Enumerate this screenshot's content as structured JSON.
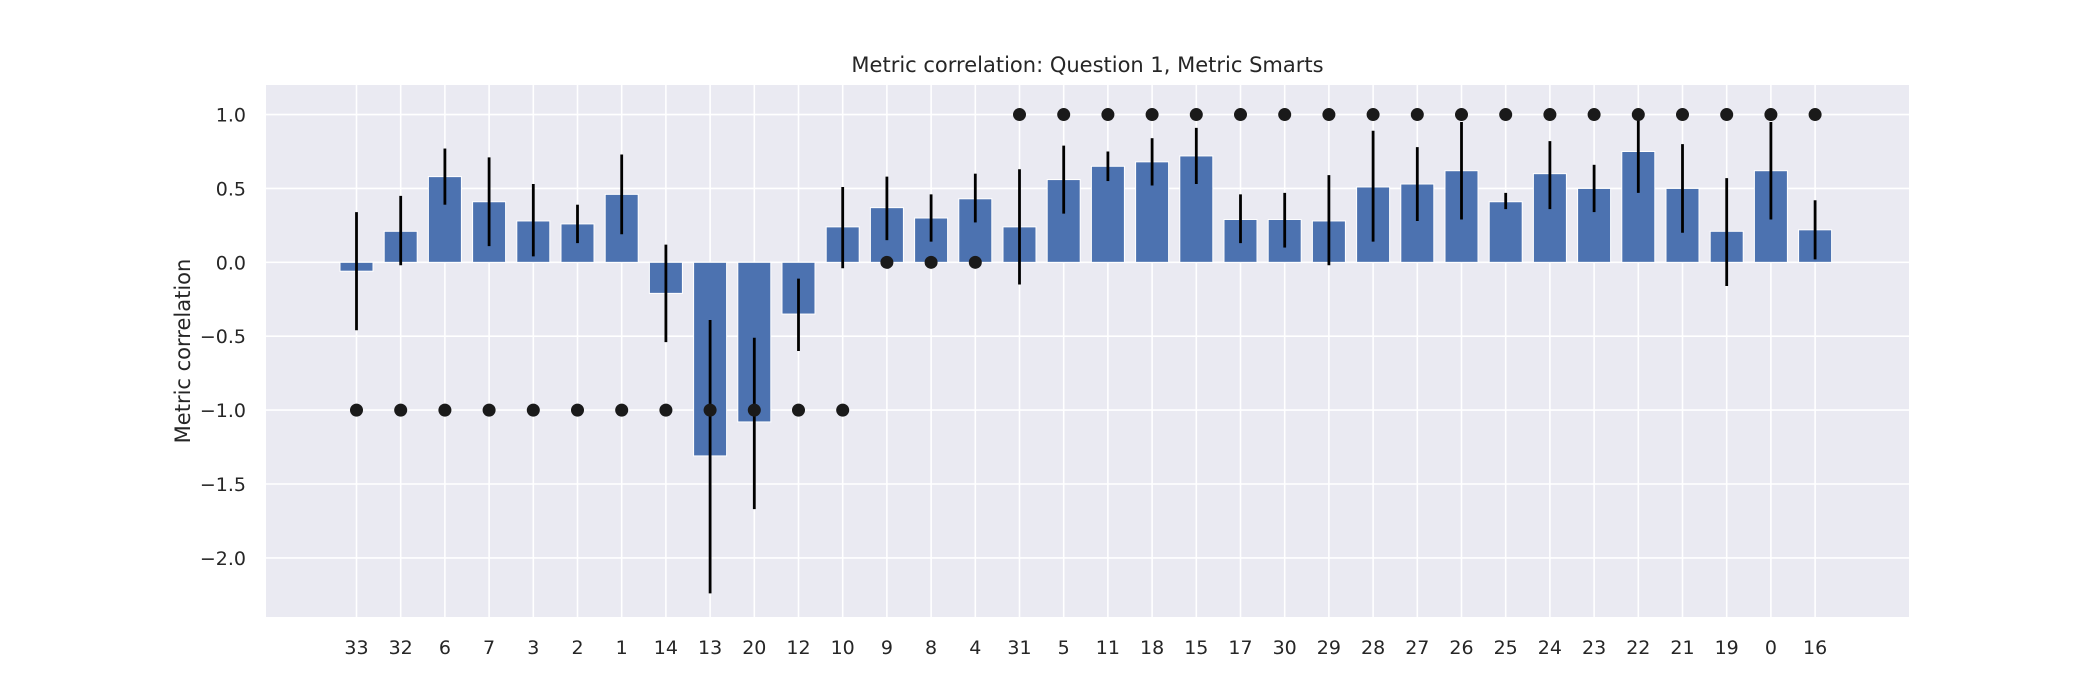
{
  "chart_data": {
    "type": "bar",
    "title": "Metric correlation: Question 1, Metric Smarts",
    "xlabel": "",
    "ylabel": "Metric correlation",
    "ylim": [
      -2.4,
      1.2
    ],
    "yticks": [
      1.0,
      0.5,
      0.0,
      -0.5,
      -1.0,
      -1.5,
      -2.0
    ],
    "ytick_labels": [
      "1.0",
      "0.5",
      "0.0",
      "−0.5",
      "−1.0",
      "−1.5",
      "−2.0"
    ],
    "grid": true,
    "categories": [
      "33",
      "32",
      "6",
      "7",
      "3",
      "2",
      "1",
      "14",
      "13",
      "20",
      "12",
      "10",
      "9",
      "8",
      "4",
      "31",
      "5",
      "11",
      "18",
      "15",
      "17",
      "30",
      "29",
      "28",
      "27",
      "26",
      "25",
      "24",
      "23",
      "22",
      "21",
      "19",
      "0",
      "16"
    ],
    "values": [
      -0.06,
      0.21,
      0.58,
      0.41,
      0.28,
      0.26,
      0.46,
      -0.21,
      -1.31,
      -1.08,
      -0.35,
      0.24,
      0.37,
      0.3,
      0.43,
      0.24,
      0.56,
      0.65,
      0.68,
      0.72,
      0.29,
      0.29,
      0.28,
      0.51,
      0.53,
      0.62,
      0.41,
      0.6,
      0.5,
      0.75,
      0.5,
      0.21,
      0.62,
      0.22
    ],
    "error_low": [
      -0.46,
      -0.02,
      0.39,
      0.11,
      0.04,
      0.13,
      0.19,
      -0.54,
      -2.24,
      -1.67,
      -0.6,
      -0.04,
      0.15,
      0.14,
      0.27,
      -0.15,
      0.33,
      0.55,
      0.52,
      0.53,
      0.13,
      0.1,
      -0.02,
      0.14,
      0.28,
      0.29,
      0.36,
      0.36,
      0.34,
      0.47,
      0.2,
      -0.16,
      0.29,
      0.02
    ],
    "error_high": [
      0.34,
      0.45,
      0.77,
      0.71,
      0.53,
      0.39,
      0.73,
      0.12,
      -0.39,
      -0.51,
      -0.11,
      0.51,
      0.58,
      0.46,
      0.6,
      0.63,
      0.79,
      0.75,
      0.84,
      0.91,
      0.46,
      0.47,
      0.59,
      0.89,
      0.78,
      0.95,
      0.47,
      0.82,
      0.66,
      1.03,
      0.8,
      0.57,
      0.95,
      0.42
    ],
    "markers": [
      -1,
      -1,
      -1,
      -1,
      -1,
      -1,
      -1,
      -1,
      -1,
      -1,
      -1,
      -1,
      0,
      0,
      0,
      1,
      1,
      1,
      1,
      1,
      1,
      1,
      1,
      1,
      1,
      1,
      1,
      1,
      1,
      1,
      1,
      1,
      1,
      1
    ],
    "colors": {
      "plot_background": "#eaeaf2",
      "bar": "#4c72b0",
      "grid": "#ffffff",
      "error_bar": "#000000",
      "marker": "#1a1a1a",
      "text": "#262626"
    }
  }
}
